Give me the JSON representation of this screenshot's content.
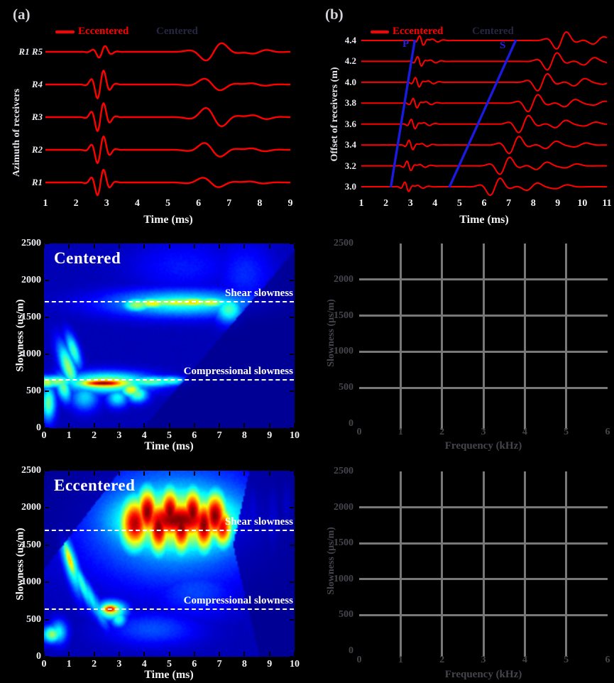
{
  "figure": {
    "background": "#000000"
  },
  "colors": {
    "eccentered_red": "#ff0000",
    "centered_legend_text": "#262640",
    "pick_blue": "#1a1ae0",
    "white_text": "#f2f2f2",
    "dim_text": "#45454d",
    "grid_gray": "#787878"
  },
  "chart_data": [
    {
      "id": "a",
      "type": "line",
      "panel_label": "(a)",
      "legend": [
        {
          "label": "Eccentered",
          "color": "#ff0000"
        },
        {
          "label": "Centered",
          "color": "#262640"
        }
      ],
      "ylabel": "Azimuth of receivers",
      "xlabel": "Time (ms)",
      "x_range": [
        1,
        9
      ],
      "xticks": [
        1,
        2,
        3,
        4,
        5,
        6,
        7,
        8,
        9
      ],
      "traces": [
        {
          "label": "R1 R5",
          "p_t": 2.85,
          "p_a": 0.2,
          "s_t": 6.5,
          "s_a": 0.33
        },
        {
          "label": "R4",
          "p_t": 2.8,
          "p_a": 0.48,
          "s_t": 6.45,
          "s_a": -0.22
        },
        {
          "label": "R3",
          "p_t": 2.8,
          "p_a": 0.48,
          "s_t": 6.5,
          "s_a": -0.35
        },
        {
          "label": "R2",
          "p_t": 2.8,
          "p_a": 0.46,
          "s_t": 6.45,
          "s_a": -0.26
        },
        {
          "label": "R1",
          "p_t": 2.8,
          "p_a": 0.44,
          "s_t": 6.4,
          "s_a": -0.18
        }
      ]
    },
    {
      "id": "b",
      "type": "line",
      "panel_label": "(b)",
      "legend": [
        {
          "label": "Eccentered",
          "color": "#ff0000"
        },
        {
          "label": "Centered",
          "color": "#262640"
        }
      ],
      "ylabel": "Offset of receivers (m)",
      "xlabel": "Time (ms)",
      "x_range": [
        1,
        11
      ],
      "xticks": [
        1,
        2,
        3,
        4,
        5,
        6,
        7,
        8,
        9,
        10,
        11
      ],
      "traces": [
        {
          "label": "4.4",
          "p_t": 3.45,
          "p_a": -0.26,
          "s_t": 9.15,
          "s_a": 0.5
        },
        {
          "label": "4.2",
          "p_t": 3.37,
          "p_a": -0.26,
          "s_t": 8.77,
          "s_a": 0.5
        },
        {
          "label": "4.0",
          "p_t": 3.28,
          "p_a": -0.26,
          "s_t": 8.38,
          "s_a": 0.5
        },
        {
          "label": "3.8",
          "p_t": 3.19,
          "p_a": -0.26,
          "s_t": 7.99,
          "s_a": 0.5
        },
        {
          "label": "3.6",
          "p_t": 3.11,
          "p_a": -0.26,
          "s_t": 7.61,
          "s_a": 0.5
        },
        {
          "label": "3.4",
          "p_t": 3.02,
          "p_a": -0.26,
          "s_t": 7.22,
          "s_a": 0.5
        },
        {
          "label": "3.2",
          "p_t": 2.94,
          "p_a": -0.26,
          "s_t": 6.84,
          "s_a": 0.5
        },
        {
          "label": "3.0",
          "p_t": 2.85,
          "p_a": -0.26,
          "s_t": 6.45,
          "s_a": 0.5
        }
      ],
      "picks": {
        "p": {
          "label": "P",
          "t_bottom": 2.2,
          "t_top": 3.18
        },
        "s": {
          "label": "S",
          "t_bottom": 4.58,
          "t_top": 7.3
        }
      }
    },
    {
      "id": "c",
      "type": "heatmap",
      "title": "Centered",
      "ylabel": "Slowness (us/m)",
      "xlabel": "Time (ms)",
      "x_range": [
        0,
        10
      ],
      "y_range": [
        0,
        2500
      ],
      "xticks": [
        0,
        1,
        2,
        3,
        4,
        5,
        6,
        7,
        8,
        9,
        10
      ],
      "yticks": [
        0,
        500,
        1000,
        1500,
        2000,
        2500
      ],
      "annotations": [
        {
          "text": "Shear slowness",
          "y": 1700
        },
        {
          "text": "Compressional slowness",
          "y": 640
        }
      ],
      "blobs": [
        [
          5.5,
          1710,
          1.7,
          60,
          0.55,
          0
        ],
        [
          3.7,
          1680,
          0.45,
          70,
          0.52,
          0
        ],
        [
          4.3,
          1700,
          0.5,
          55,
          0.62,
          0
        ],
        [
          5.2,
          1710,
          0.5,
          50,
          0.6,
          0
        ],
        [
          5.9,
          1715,
          0.55,
          50,
          0.66,
          0
        ],
        [
          6.6,
          1710,
          0.5,
          55,
          0.58,
          0
        ],
        [
          5.5,
          1700,
          2.1,
          130,
          0.38,
          0
        ],
        [
          7.35,
          1620,
          0.4,
          130,
          0.42,
          0
        ],
        [
          2.35,
          618,
          0.75,
          35,
          1.0,
          0
        ],
        [
          2.4,
          620,
          0.95,
          60,
          0.8,
          0
        ],
        [
          2.5,
          625,
          1.25,
          100,
          0.55,
          0
        ],
        [
          4.2,
          640,
          0.8,
          55,
          0.45,
          0
        ],
        [
          5.0,
          650,
          0.45,
          45,
          0.42,
          0
        ],
        [
          3.45,
          530,
          0.3,
          70,
          0.6,
          0
        ],
        [
          3.7,
          470,
          0.3,
          80,
          0.45,
          0
        ],
        [
          0.5,
          640,
          0.5,
          60,
          0.5,
          0
        ],
        [
          0.1,
          630,
          0.3,
          60,
          0.55,
          0
        ],
        [
          0.95,
          830,
          0.2,
          240,
          0.5,
          -18
        ],
        [
          1.15,
          1060,
          0.16,
          170,
          0.42,
          -18
        ],
        [
          0.75,
          560,
          0.2,
          140,
          0.45,
          -15
        ],
        [
          0.15,
          350,
          0.2,
          170,
          0.45,
          0
        ],
        [
          1.6,
          430,
          0.4,
          130,
          0.3,
          -25
        ],
        [
          2.9,
          420,
          0.3,
          90,
          0.35,
          0
        ],
        [
          5.5,
          2200,
          1.5,
          250,
          0.1,
          0
        ],
        [
          8.0,
          2100,
          0.8,
          300,
          0.12,
          0
        ]
      ],
      "masks": [
        [
          [
            3.95,
            0
          ],
          [
            10,
            0
          ],
          [
            10,
            2400
          ]
        ]
      ]
    },
    {
      "id": "d",
      "type": "heatmap",
      "title": "Eccentered",
      "ylabel": "Slowness (us/m)",
      "xlabel": "Time (ms)",
      "x_range": [
        0,
        10
      ],
      "y_range": [
        0,
        2500
      ],
      "xticks": [
        0,
        1,
        2,
        3,
        4,
        5,
        6,
        7,
        8,
        9,
        10
      ],
      "yticks": [
        0,
        500,
        1000,
        1500,
        2000,
        2500
      ],
      "annotations": [
        {
          "text": "Shear slowness",
          "y": 1700
        },
        {
          "text": "Compressional slowness",
          "y": 640
        }
      ],
      "blobs": [
        [
          3.6,
          1800,
          0.45,
          260,
          0.95,
          0
        ],
        [
          4.1,
          1950,
          0.32,
          240,
          1,
          0
        ],
        [
          4.55,
          1750,
          0.32,
          260,
          1,
          0
        ],
        [
          5.0,
          1950,
          0.32,
          240,
          1,
          0
        ],
        [
          5.45,
          1760,
          0.32,
          260,
          1,
          0
        ],
        [
          5.9,
          1940,
          0.32,
          240,
          1,
          0
        ],
        [
          6.35,
          1780,
          0.32,
          260,
          1,
          0
        ],
        [
          6.8,
          1900,
          0.35,
          240,
          1,
          0
        ],
        [
          7.1,
          1750,
          0.3,
          200,
          0.9,
          0
        ],
        [
          5.3,
          1850,
          1.6,
          200,
          1,
          0
        ],
        [
          5.3,
          1840,
          1.9,
          330,
          0.72,
          0
        ],
        [
          5.3,
          1830,
          2.2,
          430,
          0.5,
          0
        ],
        [
          5.2,
          1820,
          2.5,
          560,
          0.34,
          0
        ],
        [
          1.0,
          1310,
          0.12,
          210,
          0.66,
          -16
        ],
        [
          1.05,
          1260,
          0.2,
          300,
          0.45,
          -16
        ],
        [
          1.5,
          980,
          0.14,
          260,
          0.4,
          -22
        ],
        [
          1.85,
          800,
          0.15,
          240,
          0.34,
          -24
        ],
        [
          2.15,
          640,
          0.16,
          200,
          0.3,
          -24
        ],
        [
          2.62,
          650,
          0.28,
          50,
          0.9,
          0
        ],
        [
          2.66,
          635,
          0.42,
          90,
          0.58,
          0
        ],
        [
          2.95,
          520,
          0.22,
          80,
          0.4,
          0
        ],
        [
          0.3,
          310,
          0.28,
          80,
          0.5,
          0
        ],
        [
          0.55,
          340,
          0.24,
          110,
          0.36,
          0
        ],
        [
          8.3,
          1950,
          0.16,
          280,
          0.3,
          0
        ],
        [
          9.1,
          1870,
          0.18,
          320,
          0.26,
          0
        ],
        [
          9.65,
          2050,
          0.13,
          220,
          0.22,
          0
        ],
        [
          4.3,
          380,
          1.3,
          160,
          0.16,
          0
        ],
        [
          6.0,
          900,
          1.2,
          250,
          0.15,
          0
        ]
      ],
      "masks": [
        [
          [
            0,
            1170
          ],
          [
            0,
            2500
          ],
          [
            3.05,
            2500
          ]
        ],
        [
          [
            8.6,
            0
          ],
          [
            10,
            0
          ],
          [
            10,
            2500
          ],
          [
            8.2,
            2500
          ],
          [
            7.55,
            1500
          ]
        ]
      ]
    },
    {
      "id": "e",
      "type": "grid",
      "title": "",
      "ylabel": "Slowness (µs/m)",
      "xlabel": "Frequency (kHz)",
      "x_range": [
        0,
        6
      ],
      "y_range": [
        0,
        2500
      ],
      "xticks": [
        0,
        1,
        2,
        3,
        4,
        5,
        6
      ],
      "yticks": [
        0,
        500,
        1000,
        1500,
        2000,
        2500
      ],
      "grid_x": [
        1,
        2,
        3,
        4,
        5
      ],
      "grid_y": [
        500,
        1000,
        1500,
        2000
      ],
      "series": []
    },
    {
      "id": "f",
      "type": "grid",
      "title": "",
      "ylabel": "Slowness (µs/m)",
      "xlabel": "Frequency (kHz)",
      "x_range": [
        0,
        6
      ],
      "y_range": [
        0,
        2500
      ],
      "xticks": [
        0,
        1,
        2,
        3,
        4,
        5,
        6
      ],
      "yticks": [
        0,
        500,
        1000,
        1500,
        2000,
        2500
      ],
      "grid_x": [
        1,
        2,
        3,
        4,
        5
      ],
      "grid_y": [
        500,
        1000,
        1500,
        2000
      ],
      "series": []
    }
  ]
}
